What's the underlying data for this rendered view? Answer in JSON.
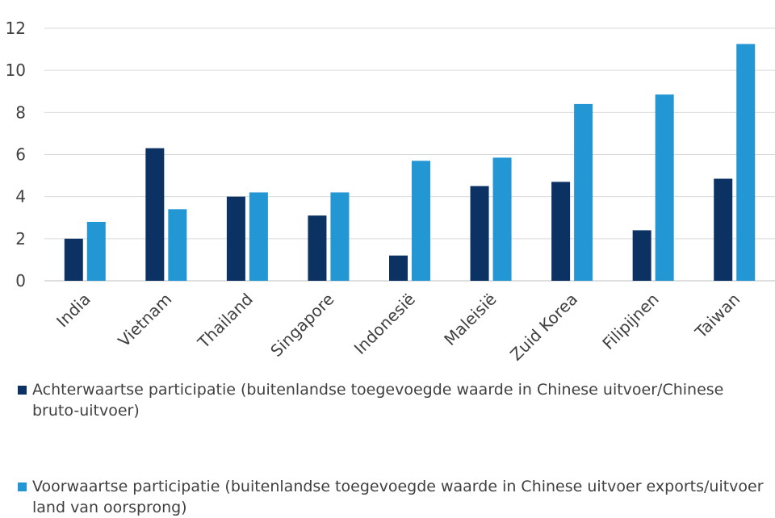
{
  "chart_data": {
    "type": "bar",
    "categories": [
      "India",
      "Vietnam",
      "Thailand",
      "Singapore",
      "Indonesië",
      "Maleisië",
      "Zuid Korea",
      "Filipijnen",
      "Taiwan"
    ],
    "series": [
      {
        "name": "Achterwaartse participatie (buitenlandse toegevoegde waarde in Chinese uitvoer/Chinese bruto-uitvoer)",
        "color": "#0c3263",
        "values": [
          2.0,
          6.3,
          4.0,
          3.1,
          1.2,
          4.5,
          4.7,
          2.4,
          4.85
        ]
      },
      {
        "name": "Voorwaartse participatie (buitenlandse toegevoegde waarde in Chinese uitvoer exports/uitvoer land van oorsprong)",
        "color": "#2396d4",
        "values": [
          2.8,
          3.4,
          4.2,
          4.2,
          5.7,
          5.85,
          8.4,
          8.85,
          11.25
        ]
      }
    ],
    "yticks": [
      0,
      2,
      4,
      6,
      8,
      10,
      12
    ],
    "ylim": [
      0,
      12
    ],
    "grid": true,
    "legend_position": "bottom"
  }
}
